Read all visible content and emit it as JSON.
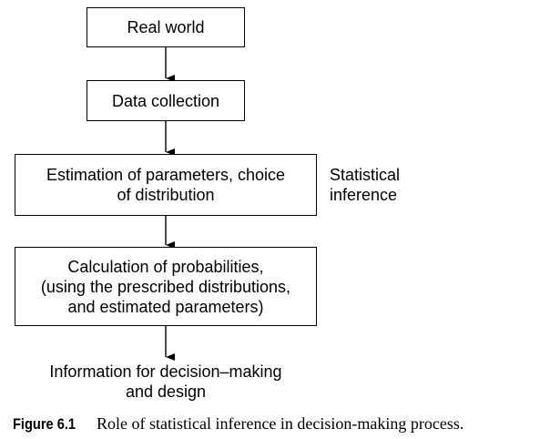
{
  "diagram": {
    "nodes": [
      {
        "id": "real-world",
        "label": "Real world"
      },
      {
        "id": "data-collection",
        "label": "Data collection"
      },
      {
        "id": "estimation",
        "label": "Estimation of parameters, choice\nof distribution"
      },
      {
        "id": "calculation",
        "label": "Calculation of probabilities,\n(using the prescribed distributions,\nand estimated parameters)"
      }
    ],
    "side_label": "Statistical\ninference",
    "output_label": "Information for decision–making\nand design",
    "edges": [
      {
        "from": "real-world",
        "to": "data-collection"
      },
      {
        "from": "data-collection",
        "to": "estimation"
      },
      {
        "from": "estimation",
        "to": "calculation"
      },
      {
        "from": "calculation",
        "to": "output"
      }
    ]
  },
  "caption": {
    "label": "Figure 6.1",
    "text": "Role of statistical inference in decision-making process."
  }
}
